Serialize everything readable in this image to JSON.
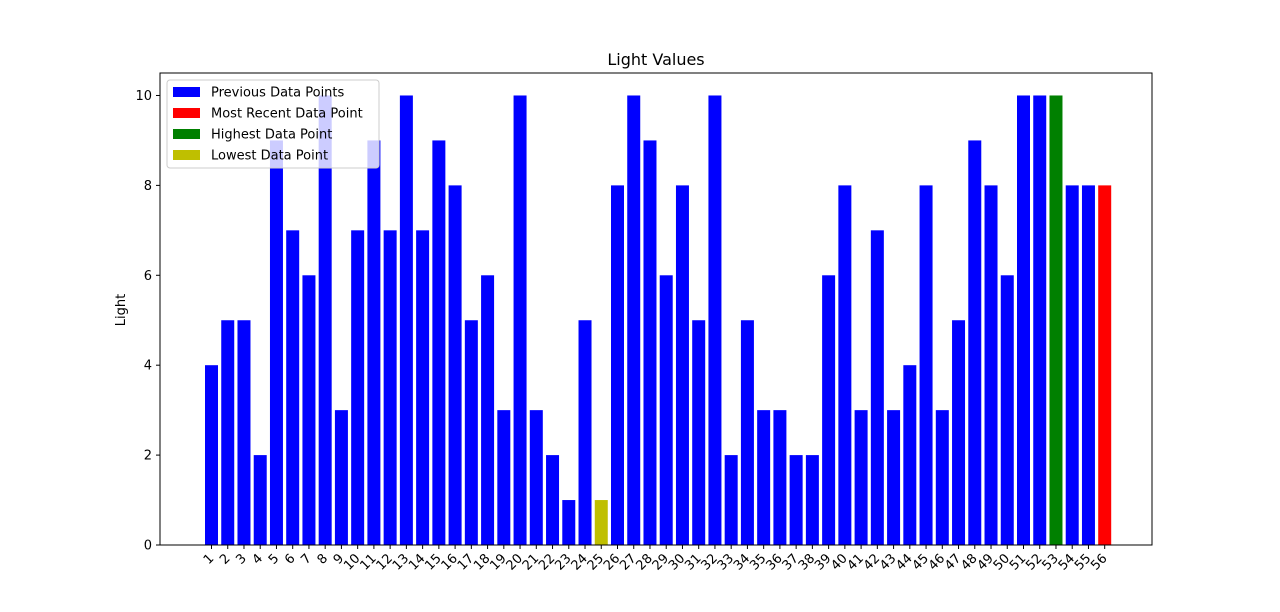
{
  "chart_data": {
    "type": "bar",
    "title": "Light Values",
    "xlabel": "",
    "ylabel": "Light",
    "ylim": [
      0,
      10.5
    ],
    "yticks": [
      0,
      2,
      4,
      6,
      8,
      10
    ],
    "grid": false,
    "legend_position": "top-left",
    "categories": [
      "1",
      "2",
      "3",
      "4",
      "5",
      "6",
      "7",
      "8",
      "9",
      "10",
      "11",
      "12",
      "13",
      "14",
      "15",
      "16",
      "17",
      "18",
      "19",
      "20",
      "21",
      "22",
      "23",
      "24",
      "25",
      "26",
      "27",
      "28",
      "29",
      "30",
      "31",
      "32",
      "33",
      "34",
      "35",
      "36",
      "37",
      "38",
      "39",
      "40",
      "41",
      "42",
      "43",
      "44",
      "45",
      "46",
      "47",
      "48",
      "49",
      "50",
      "51",
      "52",
      "53",
      "54",
      "55",
      "56"
    ],
    "values": [
      4,
      5,
      5,
      2,
      9,
      7,
      6,
      10,
      3,
      7,
      9,
      7,
      10,
      7,
      9,
      8,
      5,
      6,
      3,
      10,
      3,
      2,
      1,
      5,
      1,
      8,
      10,
      9,
      6,
      8,
      5,
      10,
      2,
      5,
      3,
      3,
      2,
      2,
      6,
      8,
      3,
      7,
      3,
      4,
      8,
      3,
      5,
      9,
      8,
      6,
      10,
      10,
      10,
      8,
      8,
      8
    ],
    "highlights": {
      "lowest_index": 24,
      "highest_index": 52,
      "most_recent_index": 55
    },
    "colors": {
      "previous": "#0000ff",
      "most_recent": "#ff0000",
      "highest": "#008000",
      "lowest": "#bfbf00"
    },
    "legend": [
      {
        "label": "Previous Data Points",
        "color": "#0000ff"
      },
      {
        "label": "Most Recent Data Point",
        "color": "#ff0000"
      },
      {
        "label": "Highest Data Point",
        "color": "#008000"
      },
      {
        "label": "Lowest Data Point",
        "color": "#bfbf00"
      }
    ]
  }
}
